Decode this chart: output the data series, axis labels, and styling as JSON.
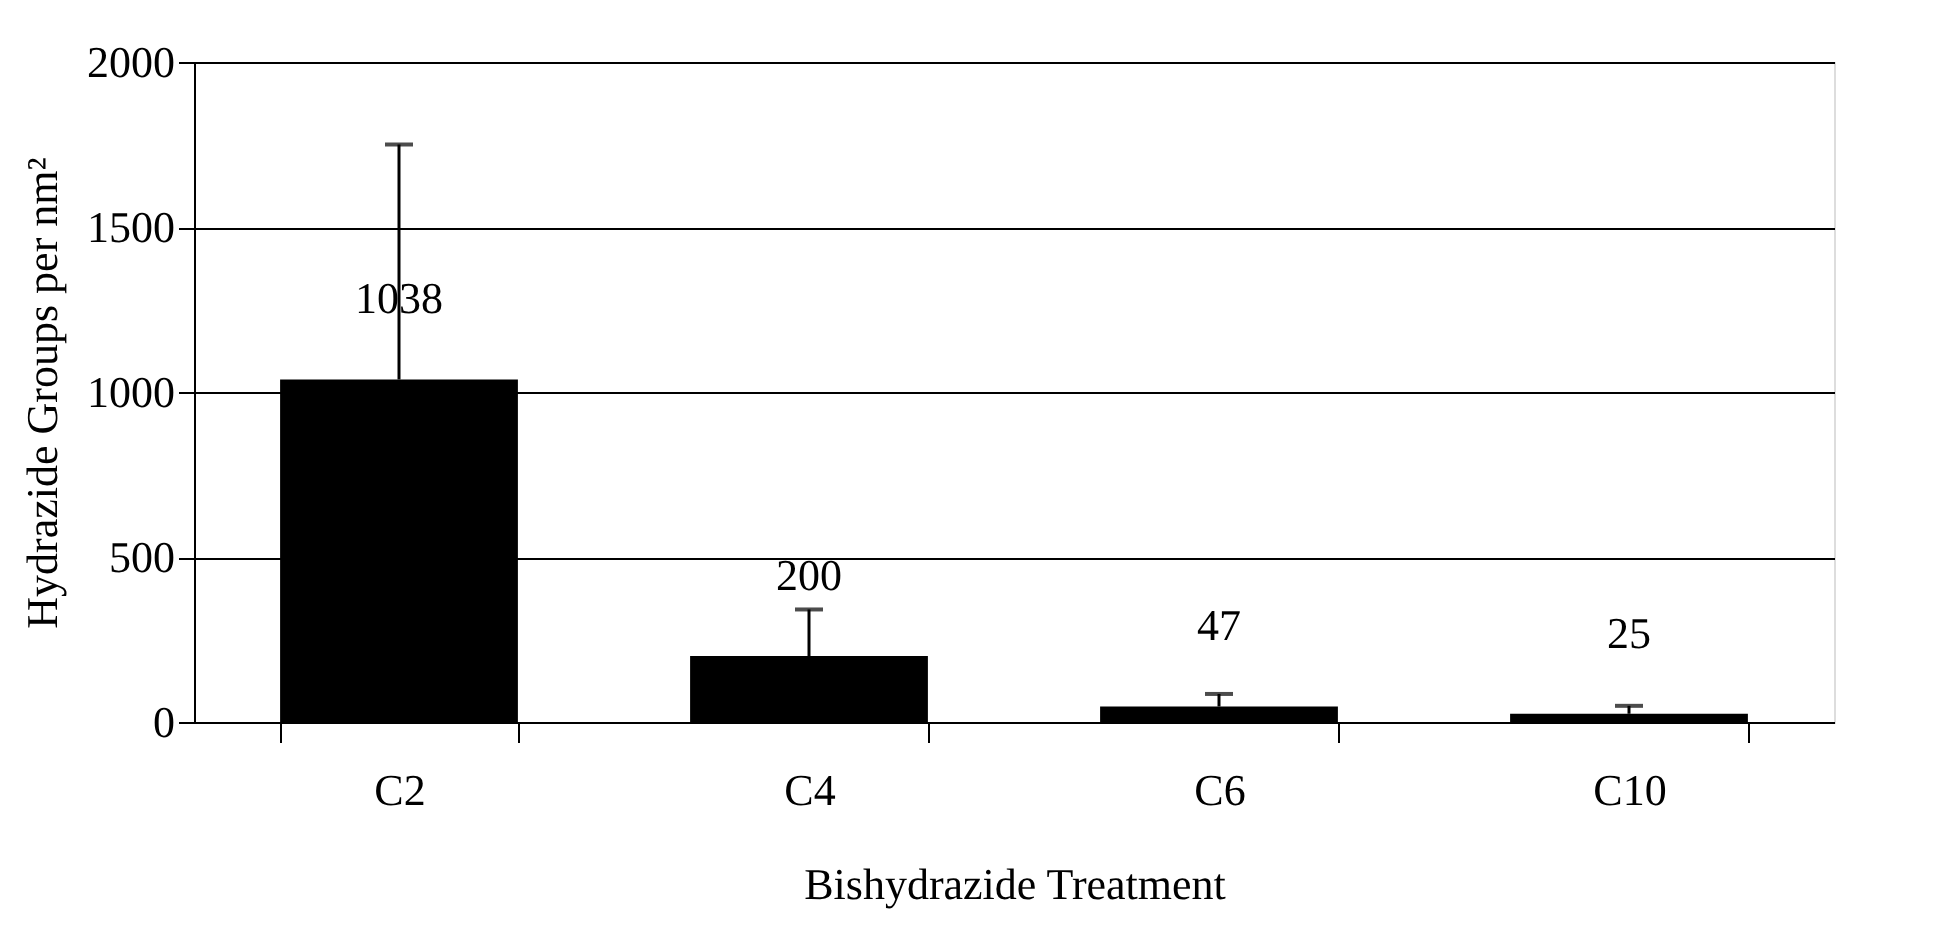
{
  "chart_data": {
    "type": "bar",
    "xlabel": "Bishydrazide Treatment",
    "ylabel": "Hydrazide Groups per nm²",
    "categories": [
      "C2",
      "C4",
      "C6",
      "C10"
    ],
    "values": [
      1038,
      200,
      47,
      25
    ],
    "color": "#000000",
    "errors": [
      [
        1038,
        1750
      ],
      [
        200,
        341
      ],
      [
        47,
        85
      ],
      [
        25,
        49
      ]
    ],
    "ylim": [
      0,
      2000
    ],
    "yticks": [
      0,
      500,
      1000,
      1500,
      2000
    ],
    "grid": "y",
    "data_labels": true
  }
}
